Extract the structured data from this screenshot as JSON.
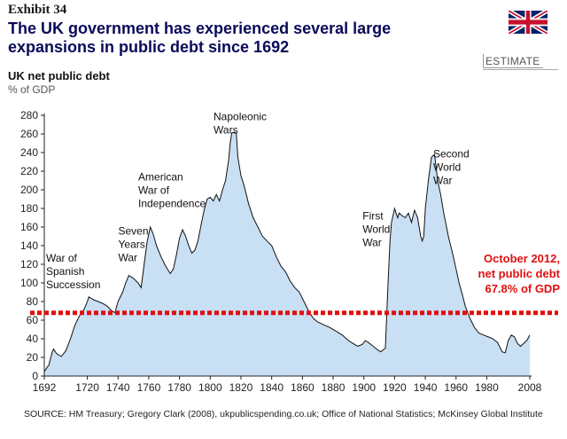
{
  "header": {
    "exhibit": "Exhibit 34",
    "title": "The UK government has experienced several large expansions in public debt since 1692",
    "estimate": "ESTIMATE",
    "flag_icon": "uk-flag-icon"
  },
  "axis_titles": {
    "main": "UK net public debt",
    "unit": "% of GDP"
  },
  "source": "SOURCE: HM Treasury; Gregory Clark (2008), ukpublicspending.co.uk; Office of National Statistics; McKinsey Global Institute",
  "colors": {
    "area_fill": "#c9dff3",
    "area_stroke": "#111111",
    "reference_line": "#e01010",
    "title": "#0a0a5a"
  },
  "chart_data": {
    "type": "area",
    "xlim": [
      1692,
      2008
    ],
    "ylim": [
      0,
      280
    ],
    "xticks": [
      1692,
      1720,
      1740,
      1760,
      1780,
      1800,
      1820,
      1840,
      1860,
      1880,
      1900,
      1920,
      1940,
      1960,
      1980,
      2008
    ],
    "yticks": [
      0,
      20,
      40,
      60,
      80,
      100,
      120,
      140,
      160,
      180,
      200,
      220,
      240,
      260,
      280
    ],
    "grid": false,
    "series": [
      {
        "name": "UK net public debt",
        "points": [
          [
            1692,
            5
          ],
          [
            1695,
            12
          ],
          [
            1697,
            25
          ],
          [
            1698,
            29
          ],
          [
            1700,
            24
          ],
          [
            1703,
            21
          ],
          [
            1706,
            27
          ],
          [
            1709,
            40
          ],
          [
            1712,
            55
          ],
          [
            1715,
            65
          ],
          [
            1718,
            72
          ],
          [
            1720,
            80
          ],
          [
            1721,
            85
          ],
          [
            1724,
            82
          ],
          [
            1727,
            80
          ],
          [
            1730,
            78
          ],
          [
            1733,
            75
          ],
          [
            1736,
            70
          ],
          [
            1738,
            68
          ],
          [
            1740,
            80
          ],
          [
            1743,
            90
          ],
          [
            1745,
            100
          ],
          [
            1747,
            108
          ],
          [
            1750,
            105
          ],
          [
            1753,
            100
          ],
          [
            1755,
            95
          ],
          [
            1757,
            120
          ],
          [
            1759,
            145
          ],
          [
            1761,
            160
          ],
          [
            1763,
            152
          ],
          [
            1765,
            140
          ],
          [
            1768,
            128
          ],
          [
            1771,
            118
          ],
          [
            1774,
            110
          ],
          [
            1776,
            115
          ],
          [
            1778,
            130
          ],
          [
            1780,
            148
          ],
          [
            1782,
            157
          ],
          [
            1784,
            150
          ],
          [
            1786,
            140
          ],
          [
            1788,
            132
          ],
          [
            1790,
            135
          ],
          [
            1792,
            145
          ],
          [
            1794,
            162
          ],
          [
            1796,
            178
          ],
          [
            1798,
            190
          ],
          [
            1800,
            192
          ],
          [
            1802,
            188
          ],
          [
            1804,
            195
          ],
          [
            1806,
            188
          ],
          [
            1808,
            200
          ],
          [
            1810,
            210
          ],
          [
            1812,
            232
          ],
          [
            1813,
            250
          ],
          [
            1814,
            261
          ],
          [
            1816,
            262
          ],
          [
            1817,
            260
          ],
          [
            1818,
            235
          ],
          [
            1820,
            215
          ],
          [
            1822,
            205
          ],
          [
            1825,
            185
          ],
          [
            1828,
            170
          ],
          [
            1831,
            160
          ],
          [
            1834,
            150
          ],
          [
            1837,
            145
          ],
          [
            1840,
            140
          ],
          [
            1843,
            128
          ],
          [
            1846,
            118
          ],
          [
            1849,
            112
          ],
          [
            1852,
            102
          ],
          [
            1855,
            95
          ],
          [
            1858,
            90
          ],
          [
            1861,
            80
          ],
          [
            1864,
            70
          ],
          [
            1867,
            62
          ],
          [
            1870,
            58
          ],
          [
            1874,
            55
          ],
          [
            1878,
            52
          ],
          [
            1882,
            48
          ],
          [
            1886,
            44
          ],
          [
            1890,
            38
          ],
          [
            1893,
            35
          ],
          [
            1896,
            32
          ],
          [
            1899,
            34
          ],
          [
            1901,
            38
          ],
          [
            1903,
            36
          ],
          [
            1906,
            32
          ],
          [
            1909,
            28
          ],
          [
            1911,
            26
          ],
          [
            1914,
            30
          ],
          [
            1915,
            70
          ],
          [
            1916,
            110
          ],
          [
            1917,
            145
          ],
          [
            1918,
            165
          ],
          [
            1920,
            180
          ],
          [
            1921,
            175
          ],
          [
            1922,
            170
          ],
          [
            1923,
            175
          ],
          [
            1925,
            172
          ],
          [
            1927,
            170
          ],
          [
            1929,
            175
          ],
          [
            1931,
            165
          ],
          [
            1933,
            178
          ],
          [
            1935,
            170
          ],
          [
            1936,
            160
          ],
          [
            1937,
            150
          ],
          [
            1938,
            145
          ],
          [
            1939,
            150
          ],
          [
            1940,
            180
          ],
          [
            1942,
            210
          ],
          [
            1944,
            235
          ],
          [
            1946,
            238
          ],
          [
            1947,
            225
          ],
          [
            1948,
            210
          ],
          [
            1950,
            195
          ],
          [
            1952,
            175
          ],
          [
            1955,
            150
          ],
          [
            1958,
            130
          ],
          [
            1960,
            115
          ],
          [
            1962,
            100
          ],
          [
            1964,
            88
          ],
          [
            1966,
            75
          ],
          [
            1969,
            62
          ],
          [
            1972,
            52
          ],
          [
            1975,
            46
          ],
          [
            1978,
            44
          ],
          [
            1981,
            42
          ],
          [
            1984,
            40
          ],
          [
            1987,
            36
          ],
          [
            1990,
            26
          ],
          [
            1992,
            25
          ],
          [
            1994,
            38
          ],
          [
            1996,
            44
          ],
          [
            1998,
            42
          ],
          [
            2000,
            35
          ],
          [
            2002,
            32
          ],
          [
            2004,
            35
          ],
          [
            2006,
            38
          ],
          [
            2008,
            44
          ]
        ]
      }
    ],
    "reference_line": {
      "y": 67.8
    },
    "annotations": [
      {
        "lines": [
          "War of",
          "Spanish",
          "Succession"
        ],
        "x": 1692,
        "y": 123
      },
      {
        "lines": [
          "Seven",
          "Years",
          "War"
        ],
        "x": 1739,
        "y": 152
      },
      {
        "lines": [
          "American",
          "War of",
          "Independence"
        ],
        "x": 1752,
        "y": 210
      },
      {
        "lines": [
          "Napoleonic",
          "Wars"
        ],
        "x": 1801,
        "y": 275
      },
      {
        "lines": [
          "First",
          "World",
          "War"
        ],
        "x": 1898,
        "y": 168
      },
      {
        "lines": [
          "Second",
          "World",
          "War"
        ],
        "x": 1944,
        "y": 235
      }
    ],
    "red_annotation": [
      "October 2012,",
      "net public debt",
      "67.8% of GDP"
    ]
  }
}
